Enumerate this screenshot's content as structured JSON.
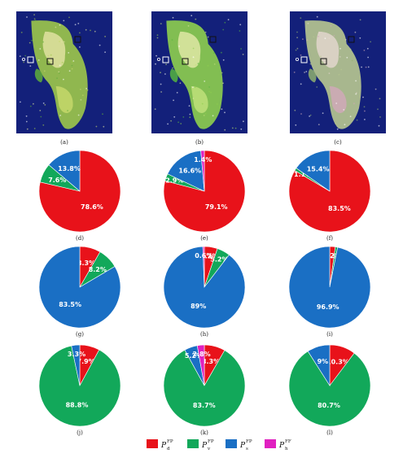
{
  "colors": {
    "d": "#e8121a",
    "v": "#12a85a",
    "s": "#1a6fc4",
    "h": "#e020c0",
    "map_background": "#13207a"
  },
  "images": [
    {
      "label": "(a)"
    },
    {
      "label": "(b)"
    },
    {
      "label": "(c)"
    }
  ],
  "chart_data": [
    {
      "type": "pie",
      "label": "(d)",
      "slices": [
        {
          "key": "d",
          "value": 78.6,
          "text": "78.6%"
        },
        {
          "key": "v",
          "value": 7.6,
          "text": "7.6%"
        },
        {
          "key": "s",
          "value": 13.8,
          "text": "13.8%"
        }
      ]
    },
    {
      "type": "pie",
      "label": "(e)",
      "slices": [
        {
          "key": "d",
          "value": 79.1,
          "text": "79.1%"
        },
        {
          "key": "v",
          "value": 2.9,
          "text": "2.9%"
        },
        {
          "key": "s",
          "value": 16.6,
          "text": "16.6%"
        },
        {
          "key": "h",
          "value": 1.4,
          "text": "1.4%"
        }
      ]
    },
    {
      "type": "pie",
      "label": "(f)",
      "slices": [
        {
          "key": "d",
          "value": 83.5,
          "text": "83.5%"
        },
        {
          "key": "v",
          "value": 1.1,
          "text": "1.1%"
        },
        {
          "key": "s",
          "value": 15.4,
          "text": "15.4%"
        }
      ]
    },
    {
      "type": "pie",
      "label": "(g)",
      "slices": [
        {
          "key": "d",
          "value": 8.3,
          "text": "8.3%"
        },
        {
          "key": "v",
          "value": 8.2,
          "text": "8.2%"
        },
        {
          "key": "s",
          "value": 83.5,
          "text": "83.5%"
        }
      ]
    },
    {
      "type": "pie",
      "label": "(h)",
      "slices": [
        {
          "key": "d",
          "value": 5.2,
          "text": "5.2%"
        },
        {
          "key": "v",
          "value": 5.2,
          "text": "5.2%"
        },
        {
          "key": "s",
          "value": 89,
          "text": "89%"
        },
        {
          "key": "h",
          "value": 0.6,
          "text": "0.6%"
        }
      ]
    },
    {
      "type": "pie",
      "label": "(i)",
      "slices": [
        {
          "key": "d",
          "value": 2.2,
          "text": "2.2%"
        },
        {
          "key": "v",
          "value": 0.9,
          "text": "0.9%"
        },
        {
          "key": "s",
          "value": 96.9,
          "text": "96.9%"
        }
      ]
    },
    {
      "type": "pie",
      "label": "(j)",
      "slices": [
        {
          "key": "d",
          "value": 7.9,
          "text": "7.9%"
        },
        {
          "key": "v",
          "value": 88.8,
          "text": "88.8%"
        },
        {
          "key": "s",
          "value": 3.3,
          "text": "3.3%"
        }
      ]
    },
    {
      "type": "pie",
      "label": "(k)",
      "slices": [
        {
          "key": "d",
          "value": 8.3,
          "text": "8.3%"
        },
        {
          "key": "v",
          "value": 83.7,
          "text": "83.7%"
        },
        {
          "key": "s",
          "value": 5.2,
          "text": "5.2%"
        },
        {
          "key": "h",
          "value": 2.8,
          "text": "2.8%"
        }
      ]
    },
    {
      "type": "pie",
      "label": "(l)",
      "slices": [
        {
          "key": "d",
          "value": 10.3,
          "text": "10.3%"
        },
        {
          "key": "v",
          "value": 80.7,
          "text": "80.7%"
        },
        {
          "key": "s",
          "value": 9,
          "text": "9%"
        }
      ]
    }
  ],
  "legend": [
    {
      "key": "d",
      "base": "P",
      "sub": "d",
      "sup": "FP"
    },
    {
      "key": "v",
      "base": "P",
      "sub": "v",
      "sup": "FP"
    },
    {
      "key": "s",
      "base": "P",
      "sub": "s",
      "sup": "FP"
    },
    {
      "key": "h",
      "base": "P",
      "sub": "h",
      "sup": "FF"
    }
  ]
}
